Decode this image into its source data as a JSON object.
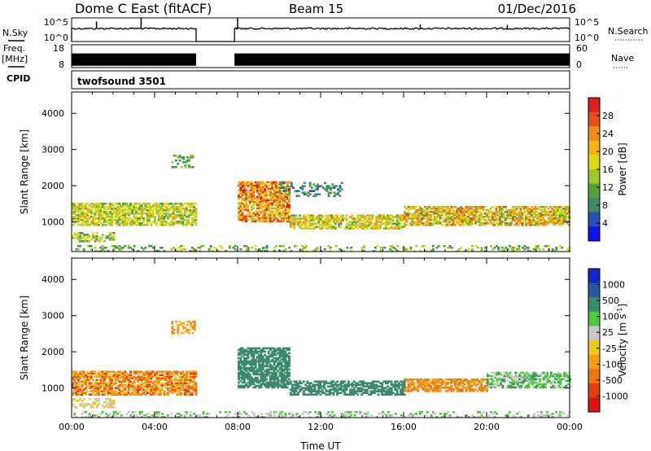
{
  "header": {
    "station": "Dome C East (fitACF)",
    "beam": "Beam 15",
    "date": "01/Dec/2016"
  },
  "chart_data": [
    {
      "name": "nsky-nsearch-strip",
      "type": "line",
      "time_range_hours": [
        0,
        24
      ],
      "x_ticks_hours": [
        0,
        4,
        8,
        12,
        16,
        20,
        24
      ],
      "left_label": "N.Sky",
      "left_ticks": [
        "10^5",
        "10^0"
      ],
      "right_label": "N.Search",
      "right_ticks": [
        "10^5",
        "10^0"
      ],
      "data_gap_hours": [
        6.0,
        7.85
      ],
      "baseline_level": 0.55,
      "spikes": [
        {
          "hour": 1.2,
          "level": 0.85
        },
        {
          "hour": 3.35,
          "level": 1.0
        },
        {
          "hour": 8.0,
          "level": 1.0
        },
        {
          "hour": 16.8,
          "level": 0.72
        },
        {
          "hour": 21.0,
          "level": 0.7
        }
      ]
    },
    {
      "name": "freq-nave-strip",
      "type": "area",
      "time_range_hours": [
        0,
        24
      ],
      "left_label_line1": "Freq.",
      "left_label_line2": "[MHz]",
      "left_ticks": [
        "18",
        "8"
      ],
      "right_label": "Nave",
      "right_ticks": [
        "60",
        "0"
      ],
      "data_gap_hours": [
        6.0,
        7.85
      ],
      "fill_range_fraction": [
        0.08,
        0.62
      ]
    },
    {
      "name": "cpid-strip",
      "type": "table",
      "label": "CPID",
      "program": "twofsound 3501"
    },
    {
      "name": "power-panel",
      "type": "heatmap",
      "ylabel": "Slant Range [km]",
      "yticks": [
        1000,
        2000,
        3000,
        4000
      ],
      "ylim": [
        180,
        4590
      ],
      "x_range_hours": [
        0,
        24
      ],
      "colorbar_label": "Power [dB]",
      "colorbar_ticks": [
        "4",
        "8",
        "12",
        "16",
        "20",
        "24",
        "28"
      ],
      "colorbar_colors": [
        "#1010e8",
        "#2850b4",
        "#3c8c64",
        "#50a03c",
        "#a0c828",
        "#dcdc14",
        "#f5b414",
        "#f08c1e",
        "#e6501e",
        "#dc1e1e"
      ],
      "data_gap_hours": [
        6.0,
        7.85
      ],
      "echo_bands": [
        {
          "start_h": 0.0,
          "end_h": 6.0,
          "range_lo": 900,
          "range_hi": 1500,
          "color_bias": [
            3,
            6
          ],
          "density": 0.7
        },
        {
          "start_h": 0.0,
          "end_h": 2.0,
          "range_lo": 450,
          "range_hi": 700,
          "color_bias": [
            2,
            6
          ],
          "density": 0.5
        },
        {
          "start_h": 4.8,
          "end_h": 5.9,
          "range_lo": 2500,
          "range_hi": 2850,
          "color_bias": [
            2,
            4
          ],
          "density": 0.35
        },
        {
          "start_h": 8.0,
          "end_h": 10.5,
          "range_lo": 1000,
          "range_hi": 2100,
          "color_bias": [
            4,
            9
          ],
          "density": 0.75
        },
        {
          "start_h": 10.5,
          "end_h": 16.0,
          "range_lo": 800,
          "range_hi": 1200,
          "color_bias": [
            3,
            7
          ],
          "density": 0.65
        },
        {
          "start_h": 10.0,
          "end_h": 13.0,
          "range_lo": 1700,
          "range_hi": 2100,
          "color_bias": [
            1,
            3
          ],
          "density": 0.3
        },
        {
          "start_h": 16.0,
          "end_h": 24.0,
          "range_lo": 900,
          "range_hi": 1400,
          "color_bias": [
            3,
            8
          ],
          "density": 0.7
        },
        {
          "start_h": 0.0,
          "end_h": 24.0,
          "range_lo": 180,
          "range_hi": 350,
          "color_bias": [
            2,
            5
          ],
          "density": 0.25
        }
      ]
    },
    {
      "name": "velocity-panel",
      "type": "heatmap",
      "ylabel": "Slant Range [km]",
      "yticks": [
        1000,
        2000,
        3000,
        4000
      ],
      "ylim": [
        180,
        4590
      ],
      "x_range_hours": [
        0,
        24
      ],
      "xticks": [
        "00:00",
        "04:00",
        "08:00",
        "12:00",
        "16:00",
        "20:00",
        "00:00"
      ],
      "xlabel": "Time UT",
      "colorbar_label": "Velocity [m s",
      "colorbar_label_sup": "-1",
      "colorbar_ticks": [
        "1000",
        "500",
        "100",
        "25",
        "-25",
        "-100",
        "-500",
        "-1000"
      ],
      "colorbar_colors": [
        "#1428c8",
        "#2858a0",
        "#3c8a6a",
        "#50c83c",
        "#c8c8c8",
        "#f0c81e",
        "#f5a014",
        "#f07814",
        "#e63c14",
        "#dc1414"
      ],
      "data_gap_hours": [
        6.0,
        7.85
      ],
      "echo_bands": [
        {
          "start_h": 0.0,
          "end_h": 6.0,
          "range_lo": 800,
          "range_hi": 1450,
          "color_bias": [
            5,
            8
          ],
          "density": 0.7
        },
        {
          "start_h": 0.0,
          "end_h": 2.0,
          "range_lo": 450,
          "range_hi": 700,
          "color_bias": [
            4,
            5
          ],
          "density": 0.45
        },
        {
          "start_h": 4.8,
          "end_h": 5.9,
          "range_lo": 2500,
          "range_hi": 2850,
          "color_bias": [
            5,
            7
          ],
          "density": 0.35
        },
        {
          "start_h": 8.0,
          "end_h": 10.5,
          "range_lo": 1000,
          "range_hi": 2100,
          "color_bias": [
            2,
            2
          ],
          "density": 0.75
        },
        {
          "start_h": 10.5,
          "end_h": 16.0,
          "range_lo": 800,
          "range_hi": 1200,
          "color_bias": [
            2,
            2
          ],
          "density": 0.65
        },
        {
          "start_h": 16.0,
          "end_h": 20.0,
          "range_lo": 900,
          "range_hi": 1250,
          "color_bias": [
            6,
            7
          ],
          "density": 0.7
        },
        {
          "start_h": 20.0,
          "end_h": 24.0,
          "range_lo": 1000,
          "range_hi": 1450,
          "color_bias": [
            2,
            4
          ],
          "density": 0.6
        },
        {
          "start_h": 0.0,
          "end_h": 24.0,
          "range_lo": 180,
          "range_hi": 350,
          "color_bias": [
            3,
            4
          ],
          "density": 0.25
        }
      ]
    }
  ]
}
